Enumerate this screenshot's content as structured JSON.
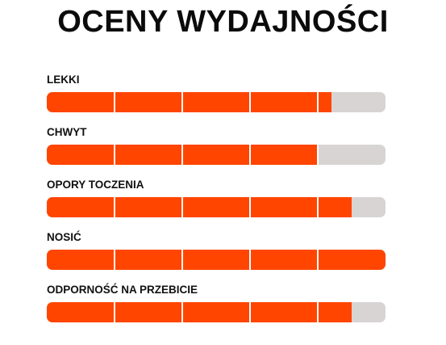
{
  "header": {
    "title": "OCENY WYDAJNOŚCI"
  },
  "ratings": [
    {
      "label": "LEKKI",
      "value": 0.84
    },
    {
      "label": "CHWYT",
      "value": 0.8
    },
    {
      "label": "OPORY TOCZENIA",
      "value": 0.9
    },
    {
      "label": "NOSIĆ",
      "value": 1.0
    },
    {
      "label": "ODPORNOŚĆ NA PRZEBICIE",
      "value": 0.9
    }
  ],
  "scale_segments": 5,
  "colors": {
    "fill": "#ff4500",
    "track": "#d8d4d4",
    "text": "#111111"
  }
}
